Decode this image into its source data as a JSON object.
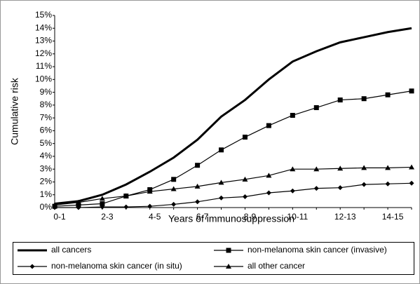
{
  "chart_data": {
    "type": "line",
    "xlabel": "Years of immunosuppression",
    "ylabel": "Cumulative risk",
    "categories": [
      "0-1",
      null,
      "2-3",
      null,
      "4-5",
      null,
      "6-7",
      null,
      "8-9",
      null,
      "10-11",
      null,
      "12-13",
      null,
      "14-15",
      null
    ],
    "ylim": [
      0,
      15
    ],
    "yticks": [
      {
        "value": 0,
        "label": "0%"
      },
      {
        "value": 1,
        "label": "1%"
      },
      {
        "value": 2,
        "label": "2%"
      },
      {
        "value": 3,
        "label": "3%"
      },
      {
        "value": 4,
        "label": "4%"
      },
      {
        "value": 5,
        "label": "5%"
      },
      {
        "value": 6,
        "label": "6%"
      },
      {
        "value": 7,
        "label": "7%"
      },
      {
        "value": 8,
        "label": "8%"
      },
      {
        "value": 9,
        "label": "9%"
      },
      {
        "value": 10,
        "label": "10%"
      },
      {
        "value": 11,
        "label": "11%"
      },
      {
        "value": 12,
        "label": "12%"
      },
      {
        "value": 13,
        "label": "13%"
      },
      {
        "value": 14,
        "label": "14%"
      },
      {
        "value": 15,
        "label": "15%"
      }
    ],
    "grid": false,
    "legend": "bottom",
    "series": [
      {
        "name": "all cancers",
        "color": "#000000",
        "marker": "none",
        "values": [
          0.3,
          0.5,
          1.0,
          1.8,
          2.8,
          3.9,
          5.3,
          7.1,
          8.4,
          10.0,
          11.4,
          12.2,
          12.9,
          13.3,
          13.7,
          14.0
        ]
      },
      {
        "name": "non-melanoma skin cancer (invasive)",
        "color": "#000000",
        "marker": "square",
        "values": [
          0.1,
          0.2,
          0.3,
          0.9,
          1.4,
          2.2,
          3.3,
          4.5,
          5.5,
          6.4,
          7.2,
          7.8,
          8.4,
          8.5,
          8.8,
          9.1
        ]
      },
      {
        "name": "non-melanoma skin cancer (in situ)",
        "color": "#000000",
        "marker": "diamond",
        "values": [
          0,
          0,
          0.05,
          0.05,
          0.1,
          0.25,
          0.45,
          0.75,
          0.85,
          1.15,
          1.3,
          1.5,
          1.55,
          1.8,
          1.85,
          1.9
        ]
      },
      {
        "name": "all other cancer",
        "color": "#000000",
        "marker": "triangle",
        "values": [
          0.2,
          0.4,
          0.7,
          0.9,
          1.25,
          1.45,
          1.65,
          1.95,
          2.2,
          2.5,
          3.0,
          3.0,
          3.05,
          3.1,
          3.1,
          3.15
        ]
      }
    ]
  }
}
